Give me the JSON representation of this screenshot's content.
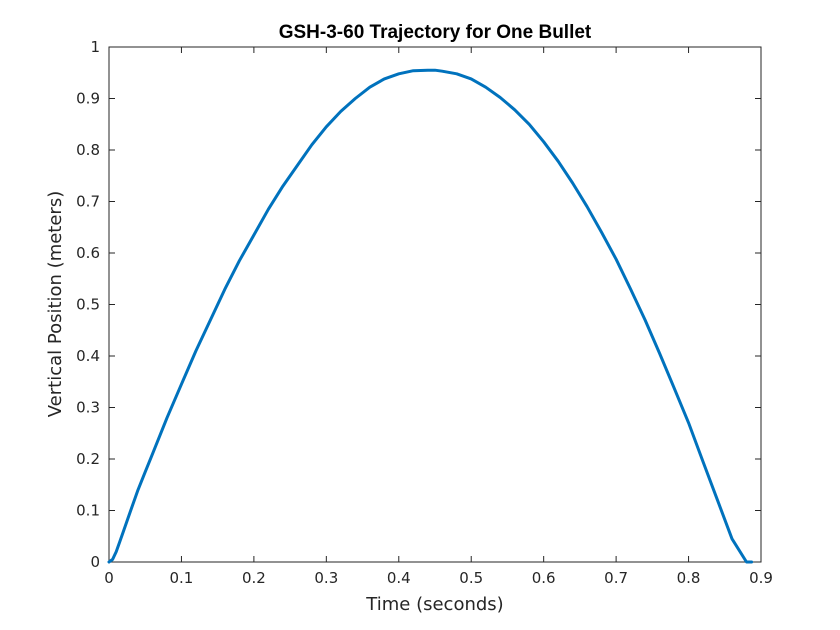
{
  "chart_data": {
    "type": "line",
    "title": "GSH-3-60 Trajectory for One Bullet",
    "xlabel": "Time (seconds)",
    "ylabel": "Vertical Position (meters)",
    "xlim": [
      0,
      0.9
    ],
    "ylim": [
      0,
      1
    ],
    "x_ticks": [
      "0",
      "0.1",
      "0.2",
      "0.3",
      "0.4",
      "0.5",
      "0.6",
      "0.7",
      "0.8",
      "0.9"
    ],
    "y_ticks": [
      "0",
      "0.1",
      "0.2",
      "0.3",
      "0.4",
      "0.5",
      "0.6",
      "0.7",
      "0.8",
      "0.9",
      "1"
    ],
    "grid": false,
    "series": [
      {
        "color": "#0072bd",
        "x": [
          0,
          0.005,
          0.01,
          0.015,
          0.02,
          0.03,
          0.04,
          0.05,
          0.06,
          0.08,
          0.1,
          0.12,
          0.14,
          0.16,
          0.18,
          0.2,
          0.22,
          0.24,
          0.26,
          0.28,
          0.3,
          0.32,
          0.34,
          0.36,
          0.38,
          0.4,
          0.42,
          0.44,
          0.45,
          0.46,
          0.48,
          0.5,
          0.52,
          0.54,
          0.56,
          0.58,
          0.6,
          0.62,
          0.64,
          0.66,
          0.68,
          0.7,
          0.72,
          0.74,
          0.76,
          0.78,
          0.8,
          0.82,
          0.84,
          0.86,
          0.88,
          0.887
        ],
        "y": [
          0,
          0.005,
          0.02,
          0.04,
          0.06,
          0.1,
          0.14,
          0.175,
          0.21,
          0.28,
          0.345,
          0.41,
          0.47,
          0.53,
          0.585,
          0.635,
          0.685,
          0.73,
          0.77,
          0.81,
          0.845,
          0.875,
          0.9,
          0.922,
          0.938,
          0.948,
          0.954,
          0.955,
          0.955,
          0.953,
          0.948,
          0.938,
          0.922,
          0.902,
          0.878,
          0.85,
          0.816,
          0.778,
          0.736,
          0.69,
          0.64,
          0.588,
          0.53,
          0.47,
          0.405,
          0.338,
          0.27,
          0.195,
          0.12,
          0.045,
          0.0,
          0.0
        ]
      }
    ]
  }
}
